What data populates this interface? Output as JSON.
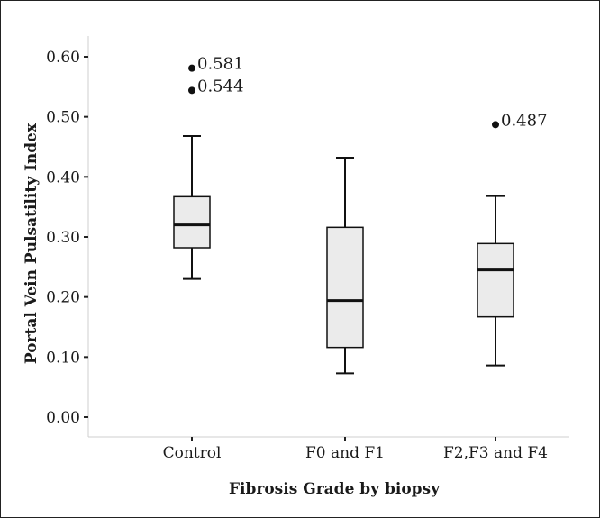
{
  "chart_data": {
    "type": "box",
    "xlabel": "Fibrosis Grade by biopsy",
    "ylabel": "Portal Vein Pulsatility Index",
    "ylim": [
      -0.02,
      0.63
    ],
    "yticks": [
      "0.00",
      "0.10",
      "0.20",
      "0.30",
      "0.40",
      "0.50",
      "0.60"
    ],
    "ytick_values": [
      0.0,
      0.1,
      0.2,
      0.3,
      0.4,
      0.5,
      0.6
    ],
    "grid": false,
    "box_fill": "#ebebeb",
    "line_color": "#111111",
    "groups": [
      {
        "category": "Control",
        "whisker_low": 0.23,
        "q1": 0.282,
        "median": 0.32,
        "q3": 0.367,
        "whisker_high": 0.468,
        "outliers": [
          {
            "value": 0.581,
            "label": "0.581"
          },
          {
            "value": 0.544,
            "label": "0.544"
          }
        ]
      },
      {
        "category": "F0 and F1",
        "whisker_low": 0.073,
        "q1": 0.116,
        "median": 0.194,
        "q3": 0.316,
        "whisker_high": 0.432,
        "outliers": []
      },
      {
        "category": "F2,F3 and F4",
        "whisker_low": 0.086,
        "q1": 0.167,
        "median": 0.245,
        "q3": 0.289,
        "whisker_high": 0.368,
        "outliers": [
          {
            "value": 0.487,
            "label": "0.487"
          }
        ]
      }
    ]
  }
}
